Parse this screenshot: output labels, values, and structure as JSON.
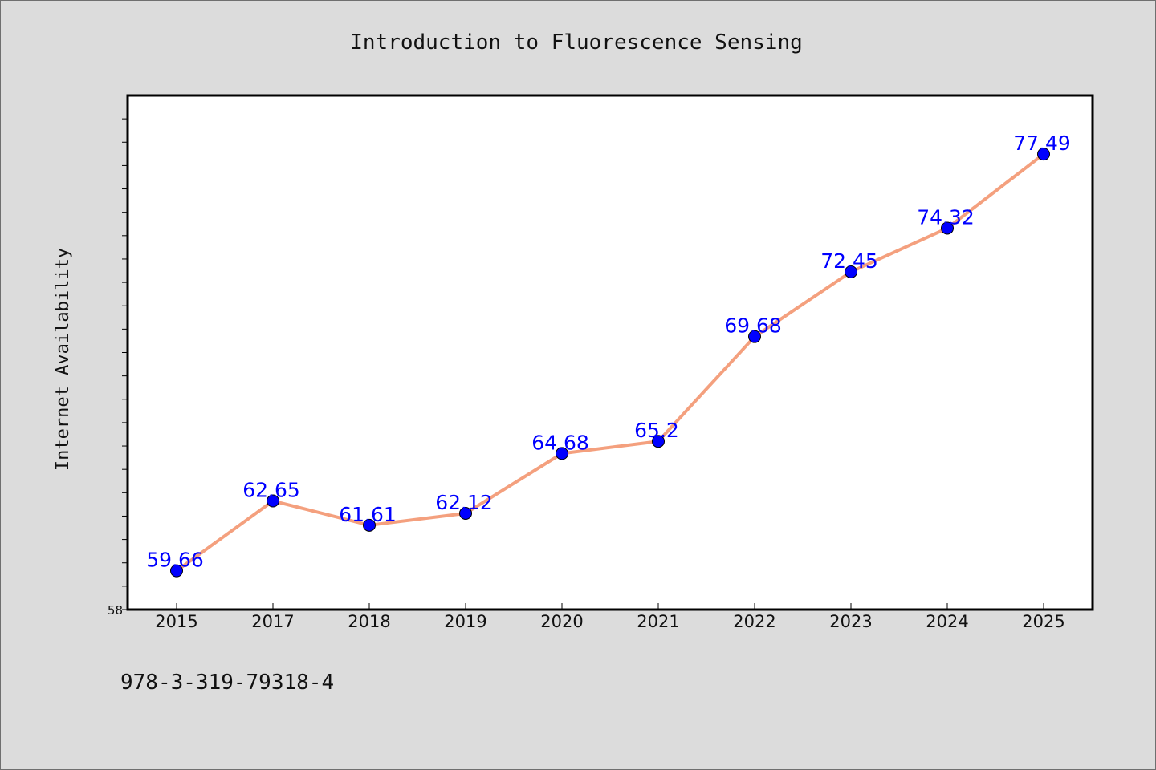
{
  "chart_data": {
    "type": "line",
    "title": "Introduction to Fluorescence Sensing",
    "ylabel": "Internet Availability",
    "xlabel": "",
    "categories": [
      "2015",
      "2017",
      "2018",
      "2019",
      "2020",
      "2021",
      "2022",
      "2023",
      "2024",
      "2025"
    ],
    "series": [
      {
        "values": [
          59.66,
          62.65,
          61.61,
          62.12,
          64.68,
          65.2,
          69.68,
          72.45,
          74.32,
          77.49
        ],
        "labels": [
          "59.66",
          "62.65",
          "61.61",
          "62.12",
          "64.68",
          "65.2",
          "69.68",
          "72.45",
          "74.32",
          "77.49"
        ]
      }
    ],
    "ylim": [
      58,
      80
    ],
    "yticks_labeled": [
      "58"
    ],
    "line_color": "#f4a07e",
    "marker_color": "#0000ff",
    "label_color": "#0000ff",
    "grid": false,
    "legend": "none"
  },
  "footnote": "978-3-319-79318-4"
}
